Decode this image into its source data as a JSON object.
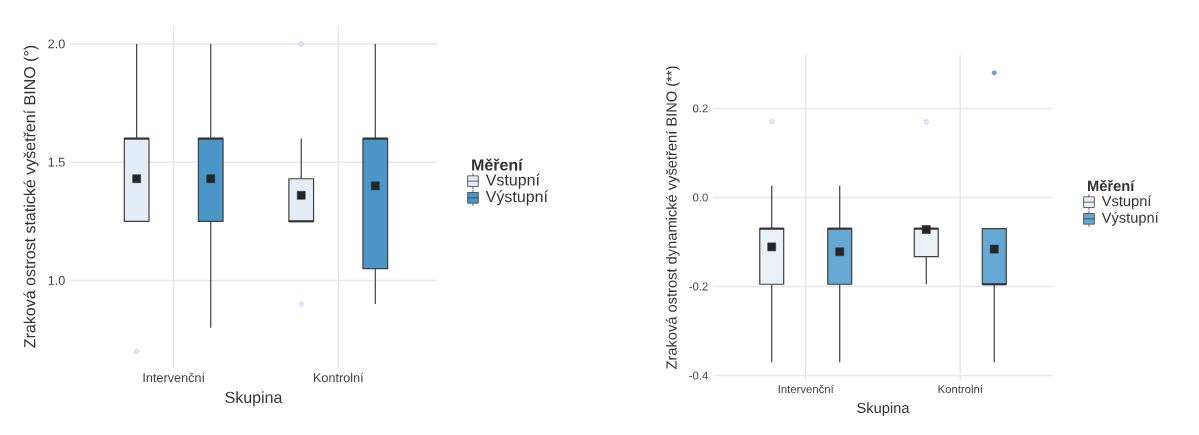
{
  "chart_data": [
    {
      "type": "box",
      "xlabel": "Skupina",
      "ylabel": "Zraková ostrost statické vyšetření BINO (°)",
      "legend_title": "Měření",
      "legend": "right",
      "grid": true,
      "categories": [
        "Intervenční",
        "Kontrolní"
      ],
      "ylim": [
        0.63,
        2.08
      ],
      "yticks": [
        {
          "value": 1.0,
          "label": "1.0"
        },
        1.5,
        {
          "value": 2.0,
          "label": "2.0"
        }
      ],
      "series": [
        {
          "name": "Vstupní",
          "color": "#e3edf7",
          "boxes": [
            {
              "low": 1.25,
              "q1": 1.25,
              "median": 1.6,
              "q3": 1.6,
              "high": 2.0,
              "mean": 1.43,
              "outliers": [
                0.7
              ]
            },
            {
              "low": 1.25,
              "q1": 1.25,
              "median": 1.25,
              "q3": 1.43,
              "high": 1.6,
              "mean": 1.36,
              "outliers": [
                0.9,
                2.0
              ]
            }
          ]
        },
        {
          "name": "Výstupní",
          "color": "#4a96c8",
          "boxes": [
            {
              "low": 0.8,
              "q1": 1.25,
              "median": 1.6,
              "q3": 1.6,
              "high": 2.0,
              "mean": 1.43
            },
            {
              "low": 0.9,
              "q1": 1.05,
              "median": 1.6,
              "q3": 1.6,
              "high": 2.0,
              "mean": 1.4
            }
          ]
        }
      ]
    },
    {
      "type": "box",
      "xlabel": "Skupina",
      "ylabel": "Zraková ostrost dynamické vyšetření BINO (**)",
      "legend_title": "Měření",
      "legend": "right",
      "grid": true,
      "categories": [
        "Intervenční",
        "Kontrolní"
      ],
      "ylim": [
        -0.41,
        0.32
      ],
      "yticks": [
        -0.4,
        -0.2,
        {
          "value": 0.0,
          "label": "0.0"
        },
        0.2
      ],
      "series": [
        {
          "name": "Vstupní",
          "color": "#e8f0f8",
          "boxes": [
            {
              "low": -0.37,
              "q1": -0.195,
              "median": -0.07,
              "q3": -0.07,
              "high": 0.027,
              "mean": -0.111,
              "outliers": [
                0.17
              ]
            },
            {
              "low": -0.195,
              "q1": -0.133,
              "median": -0.07,
              "q3": -0.07,
              "high": -0.07,
              "mean": -0.072,
              "outliers": [
                0.17
              ]
            }
          ]
        },
        {
          "name": "Výstupní",
          "color": "#66a8d4",
          "boxes": [
            {
              "low": -0.37,
              "q1": -0.195,
              "median": -0.07,
              "q3": -0.07,
              "high": 0.027,
              "mean": -0.122
            },
            {
              "low": -0.37,
              "q1": -0.195,
              "median": -0.195,
              "q3": -0.07,
              "high": -0.07,
              "mean": -0.116,
              "outliers": [
                0.28
              ]
            }
          ]
        }
      ]
    }
  ]
}
